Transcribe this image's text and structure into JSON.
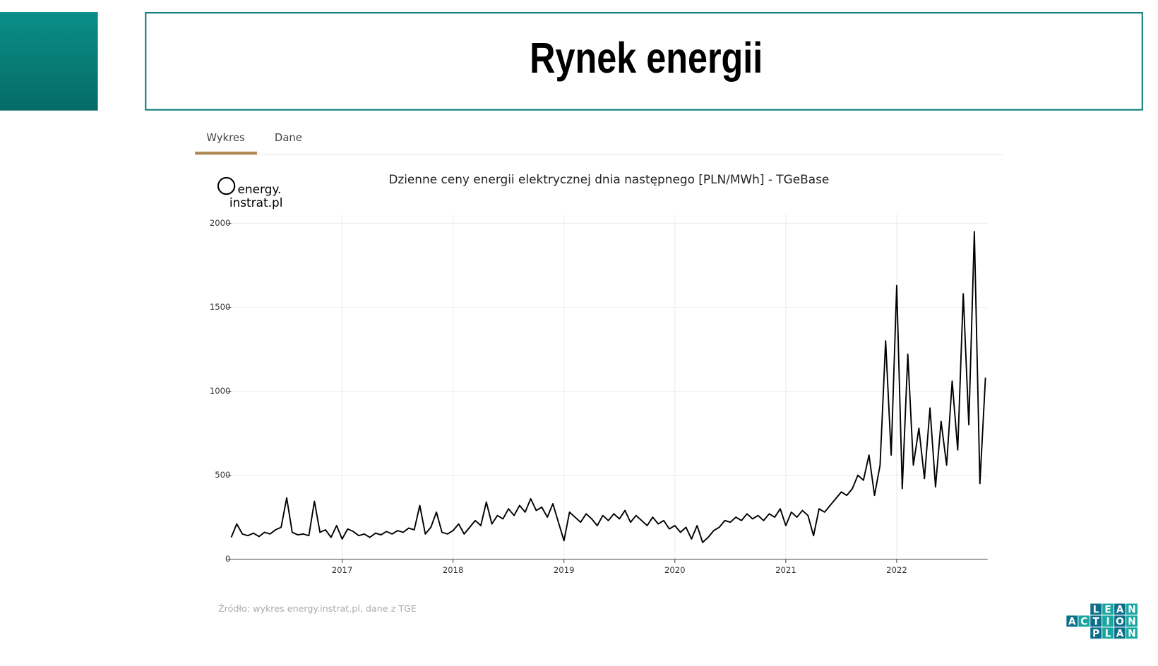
{
  "header": {
    "title": "Rynek energii"
  },
  "tabs": [
    "Wykres",
    "Dane"
  ],
  "logo": [
    "energy.",
    "instrat.pl"
  ],
  "brand": [
    "LEAN",
    "ACTION",
    "PLAN"
  ],
  "chart_data": {
    "type": "line",
    "title": "Dzienne ceny energii elektrycznej dnia następnego [PLN/MWh] - TGeBase",
    "source": "Źródło: wykres energy.instrat.pl, dane z TGE",
    "color": "#000000",
    "grid": true,
    "xlim": [
      2016.0,
      2022.82
    ],
    "xticks": [
      2017,
      2018,
      2019,
      2020,
      2021,
      2022
    ],
    "ylim": [
      0,
      2000
    ],
    "yticks": [
      0,
      500,
      1000,
      1500,
      2000
    ],
    "x": [
      2016.0,
      2016.05,
      2016.1,
      2016.15,
      2016.2,
      2016.25,
      2016.3,
      2016.35,
      2016.4,
      2016.45,
      2016.5,
      2016.55,
      2016.6,
      2016.65,
      2016.7,
      2016.75,
      2016.8,
      2016.85,
      2016.9,
      2016.95,
      2017.0,
      2017.05,
      2017.1,
      2017.15,
      2017.2,
      2017.25,
      2017.3,
      2017.35,
      2017.4,
      2017.45,
      2017.5,
      2017.55,
      2017.6,
      2017.65,
      2017.7,
      2017.75,
      2017.8,
      2017.85,
      2017.9,
      2017.95,
      2018.0,
      2018.05,
      2018.1,
      2018.15,
      2018.2,
      2018.25,
      2018.3,
      2018.35,
      2018.4,
      2018.45,
      2018.5,
      2018.55,
      2018.6,
      2018.65,
      2018.7,
      2018.75,
      2018.8,
      2018.85,
      2018.9,
      2018.95,
      2019.0,
      2019.05,
      2019.1,
      2019.15,
      2019.2,
      2019.25,
      2019.3,
      2019.35,
      2019.4,
      2019.45,
      2019.5,
      2019.55,
      2019.6,
      2019.65,
      2019.7,
      2019.75,
      2019.8,
      2019.85,
      2019.9,
      2019.95,
      2020.0,
      2020.05,
      2020.1,
      2020.15,
      2020.2,
      2020.25,
      2020.3,
      2020.35,
      2020.4,
      2020.45,
      2020.5,
      2020.55,
      2020.6,
      2020.65,
      2020.7,
      2020.75,
      2020.8,
      2020.85,
      2020.9,
      2020.95,
      2021.0,
      2021.05,
      2021.1,
      2021.15,
      2021.2,
      2021.25,
      2021.3,
      2021.35,
      2021.4,
      2021.45,
      2021.5,
      2021.55,
      2021.6,
      2021.65,
      2021.7,
      2021.75,
      2021.8,
      2021.85,
      2021.9,
      2021.95,
      2022.0,
      2022.05,
      2022.1,
      2022.15,
      2022.2,
      2022.25,
      2022.3,
      2022.35,
      2022.4,
      2022.45,
      2022.5,
      2022.55,
      2022.6,
      2022.65,
      2022.7,
      2022.75,
      2022.8
    ],
    "values": [
      130,
      210,
      150,
      140,
      155,
      135,
      160,
      150,
      175,
      190,
      365,
      160,
      145,
      150,
      140,
      345,
      160,
      175,
      130,
      200,
      120,
      180,
      165,
      140,
      150,
      130,
      155,
      145,
      165,
      150,
      170,
      160,
      185,
      175,
      320,
      150,
      190,
      280,
      160,
      150,
      170,
      210,
      150,
      190,
      230,
      200,
      340,
      210,
      260,
      240,
      300,
      260,
      320,
      280,
      360,
      290,
      310,
      250,
      330,
      220,
      110,
      280,
      250,
      220,
      270,
      240,
      200,
      260,
      230,
      270,
      240,
      290,
      220,
      260,
      230,
      200,
      250,
      210,
      230,
      180,
      200,
      160,
      190,
      120,
      200,
      100,
      130,
      170,
      190,
      230,
      220,
      250,
      230,
      270,
      240,
      260,
      230,
      270,
      250,
      300,
      200,
      280,
      250,
      290,
      260,
      140,
      300,
      280,
      320,
      360,
      400,
      380,
      420,
      500,
      470,
      620,
      380,
      560,
      1300,
      620,
      1630,
      420,
      1220,
      560,
      780,
      480,
      900,
      430,
      820,
      560,
      1060,
      650,
      1580,
      800,
      1950,
      450,
      1080
    ]
  }
}
